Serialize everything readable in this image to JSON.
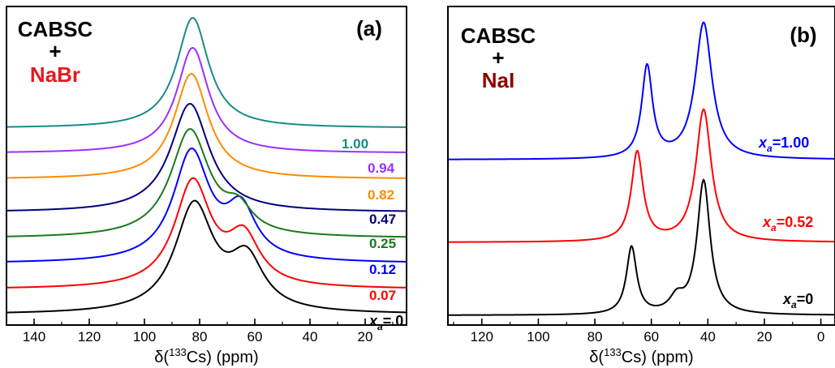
{
  "chart_data": [
    {
      "type": "line",
      "panel_label": "(a)",
      "title_lines": [
        "CABSC",
        "+",
        "NaBr"
      ],
      "title_colors": [
        "#000000",
        "#000000",
        "#e31a1c"
      ],
      "xlabel": "δ(",
      "xlabel_sup": "133",
      "xlabel_rest": "Cs) (ppm)",
      "xlim": [
        150,
        5
      ],
      "xticks": [
        140,
        120,
        100,
        80,
        60,
        40,
        20
      ],
      "grid": false,
      "series": [
        {
          "name": "0",
          "label": "= 0",
          "label_prefix": "x",
          "label_sub": "a",
          "color": "#000000",
          "baseline": 0,
          "peaks": [
            {
              "center": 82,
              "height": 132,
              "width": 8.5
            },
            {
              "center": 63,
              "height": 62,
              "width": 7.5
            }
          ]
        },
        {
          "name": "0.07",
          "label": "0.07",
          "color": "#ff0000",
          "baseline": 31,
          "peaks": [
            {
              "center": 82.5,
              "height": 130,
              "width": 8
            },
            {
              "center": 64,
              "height": 58,
              "width": 7
            }
          ]
        },
        {
          "name": "0.12",
          "label": "0.12",
          "color": "#0000ff",
          "baseline": 63,
          "peaks": [
            {
              "center": 83,
              "height": 135,
              "width": 8
            },
            {
              "center": 65,
              "height": 60,
              "width": 6.5
            }
          ]
        },
        {
          "name": "0.25",
          "label": "0.25",
          "color": "#1a7a1a",
          "baseline": 94,
          "peaks": [
            {
              "center": 83.5,
              "height": 132,
              "width": 8.5
            },
            {
              "center": 66,
              "height": 28,
              "width": 6
            }
          ]
        },
        {
          "name": "0.47",
          "label": "0.47",
          "color": "#000080",
          "baseline": 126,
          "peaks": [
            {
              "center": 83.5,
              "height": 134,
              "width": 8.5
            }
          ]
        },
        {
          "name": "0.82",
          "label": "0.82",
          "color": "#ff8c00",
          "baseline": 167,
          "peaks": [
            {
              "center": 83,
              "height": 130,
              "width": 7.5
            }
          ]
        },
        {
          "name": "0.94",
          "label": "0.94",
          "color": "#9b30ff",
          "baseline": 199,
          "peaks": [
            {
              "center": 82.5,
              "height": 130,
              "width": 7
            }
          ]
        },
        {
          "name": "1.00",
          "label": "1.00",
          "color": "#1a8a8a",
          "baseline": 230,
          "peaks": [
            {
              "center": 82.5,
              "height": 136,
              "width": 7
            }
          ]
        }
      ]
    },
    {
      "type": "line",
      "panel_label": "(b)",
      "title_lines": [
        "CABSC",
        "+",
        "NaI"
      ],
      "title_colors": [
        "#000000",
        "#000000",
        "#8b0000"
      ],
      "xlabel": "δ(",
      "xlabel_sup": "133",
      "xlabel_rest": "Cs) (ppm)",
      "xlim": [
        132,
        -5
      ],
      "xticks": [
        120,
        100,
        80,
        60,
        40,
        20,
        0
      ],
      "grid": false,
      "series": [
        {
          "name": "0",
          "label": "=0",
          "label_prefix": "x",
          "label_sub": "a",
          "color": "#000000",
          "baseline": 0,
          "peaks": [
            {
              "center": 67,
              "height": 83,
              "width": 2.2
            },
            {
              "center": 51,
              "height": 18,
              "width": 3
            },
            {
              "center": 41.5,
              "height": 165,
              "width": 2.8
            }
          ]
        },
        {
          "name": "0.52",
          "label": "=0.52",
          "label_prefix": "x",
          "label_sub": "a",
          "color": "#ff0000",
          "baseline": 90,
          "peaks": [
            {
              "center": 65,
              "height": 110,
              "width": 2.5
            },
            {
              "center": 41.5,
              "height": 163,
              "width": 3.3
            }
          ]
        },
        {
          "name": "1.00",
          "label": "=1.00",
          "label_prefix": "x",
          "label_sub": "a",
          "color": "#0000ff",
          "baseline": 192,
          "peaks": [
            {
              "center": 61.5,
              "height": 113,
              "width": 2.3
            },
            {
              "center": 41.5,
              "height": 168,
              "width": 3.6
            }
          ]
        }
      ]
    }
  ]
}
